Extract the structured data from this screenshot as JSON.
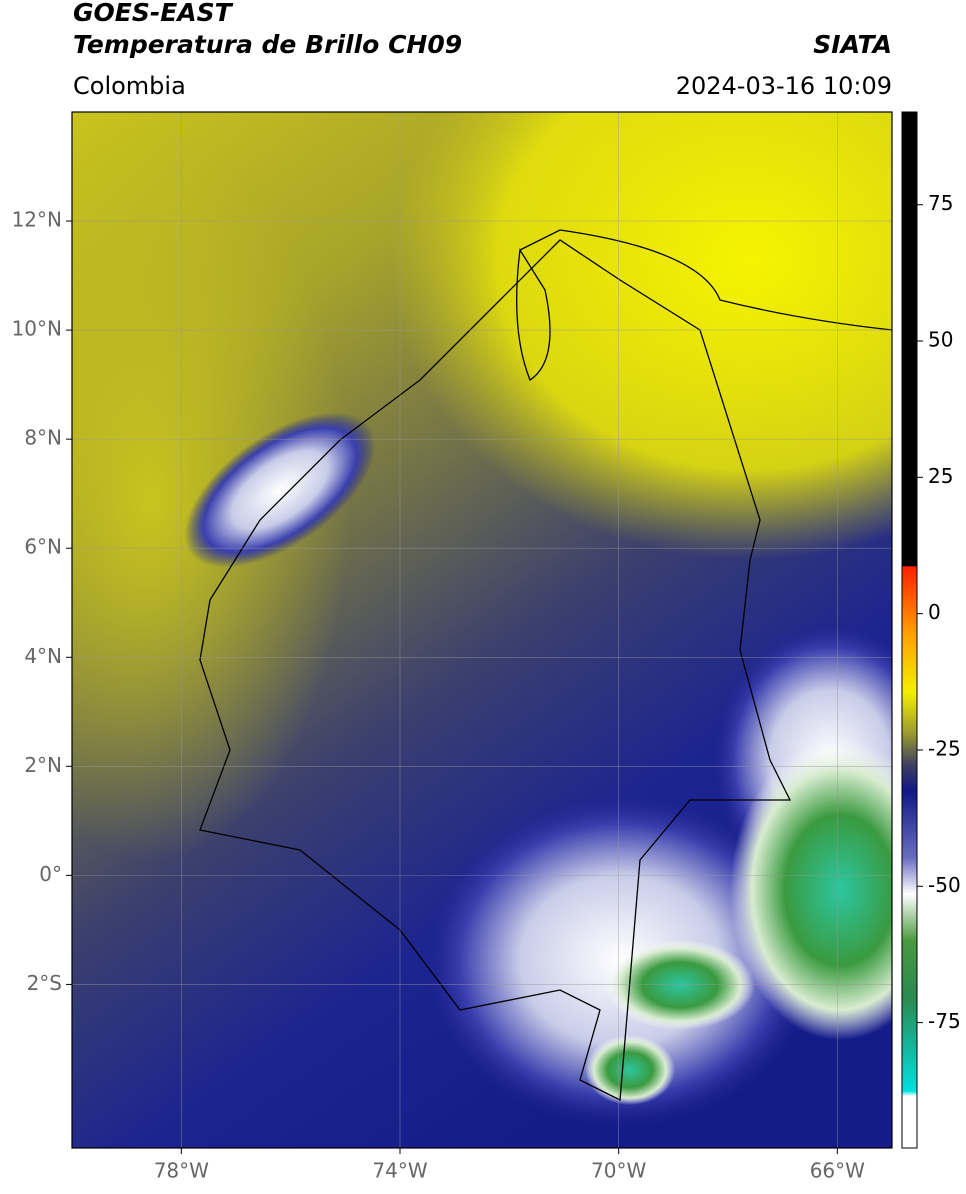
{
  "header": {
    "title": "GOES-EAST",
    "subtitle": "Temperatura de Brillo CH09",
    "source": "SIATA",
    "region": "Colombia",
    "timestamp": "2024-03-16 10:09"
  },
  "map": {
    "xlim": [
      -80,
      -65
    ],
    "ylim": [
      -5,
      14
    ],
    "xticks": [
      {
        "value": -78,
        "label": "78°W"
      },
      {
        "value": -74,
        "label": "74°W"
      },
      {
        "value": -70,
        "label": "70°W"
      },
      {
        "value": -66,
        "label": "66°W"
      }
    ],
    "yticks": [
      {
        "value": 12,
        "label": "12°N"
      },
      {
        "value": 10,
        "label": "10°N"
      },
      {
        "value": 8,
        "label": "8°N"
      },
      {
        "value": 6,
        "label": "6°N"
      },
      {
        "value": 4,
        "label": "4°N"
      },
      {
        "value": 2,
        "label": "2°N"
      },
      {
        "value": 0,
        "label": "0°"
      },
      {
        "value": -2,
        "label": "2°S"
      }
    ]
  },
  "colorbar": {
    "lim": [
      -98,
      92
    ],
    "ticks": [
      75,
      50,
      25,
      0,
      -25,
      -50,
      -75
    ]
  }
}
